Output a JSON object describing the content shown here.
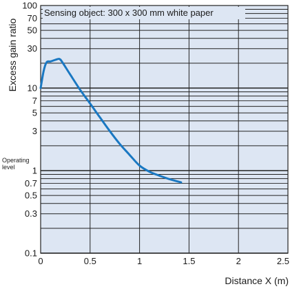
{
  "chart_data": {
    "type": "line",
    "title": "",
    "annotation": "Sensing object: 300 x 300 mm white paper",
    "xlabel": "Distance X (m)",
    "ylabel": "Excess gain ratio",
    "x_scale": "linear",
    "y_scale": "log",
    "xlim": [
      0,
      2.5
    ],
    "ylim": [
      0.1,
      100
    ],
    "x_ticks": [
      "0",
      "0.5",
      "1",
      "1.5",
      "2",
      "2.5"
    ],
    "y_ticks": [
      {
        "value": 0.1,
        "label": "0.1"
      },
      {
        "value": 0.3,
        "label": "0.3"
      },
      {
        "value": 0.5,
        "label": "0.5"
      },
      {
        "value": 0.7,
        "label": "0.7"
      },
      {
        "value": 1,
        "label": "1"
      },
      {
        "value": 3,
        "label": "3"
      },
      {
        "value": 5,
        "label": "5"
      },
      {
        "value": 7,
        "label": "7"
      },
      {
        "value": 10,
        "label": "10"
      },
      {
        "value": 30,
        "label": "30"
      },
      {
        "value": 50,
        "label": "50"
      },
      {
        "value": 70,
        "label": "70"
      },
      {
        "value": 100,
        "label": "100"
      }
    ],
    "operating_level": {
      "value": 1,
      "label_line1": "Operating",
      "label_line2": "level"
    },
    "grid": true,
    "series": [
      {
        "color": "#1a78c2",
        "x": [
          0,
          0.03,
          0.06,
          0.1,
          0.15,
          0.19,
          0.22,
          0.3,
          0.4,
          0.5,
          0.6,
          0.7,
          0.8,
          0.9,
          1.0,
          1.1,
          1.2,
          1.3,
          1.42
        ],
        "y": [
          10,
          16,
          20.5,
          21,
          22,
          22.5,
          20.5,
          14.5,
          9.5,
          6.5,
          4.4,
          3.0,
          2.1,
          1.55,
          1.15,
          0.97,
          0.87,
          0.79,
          0.72
        ]
      }
    ],
    "colors": {
      "plot_bg": "#dde6f3",
      "grid": "#222222",
      "line": "#1a78c2"
    }
  }
}
